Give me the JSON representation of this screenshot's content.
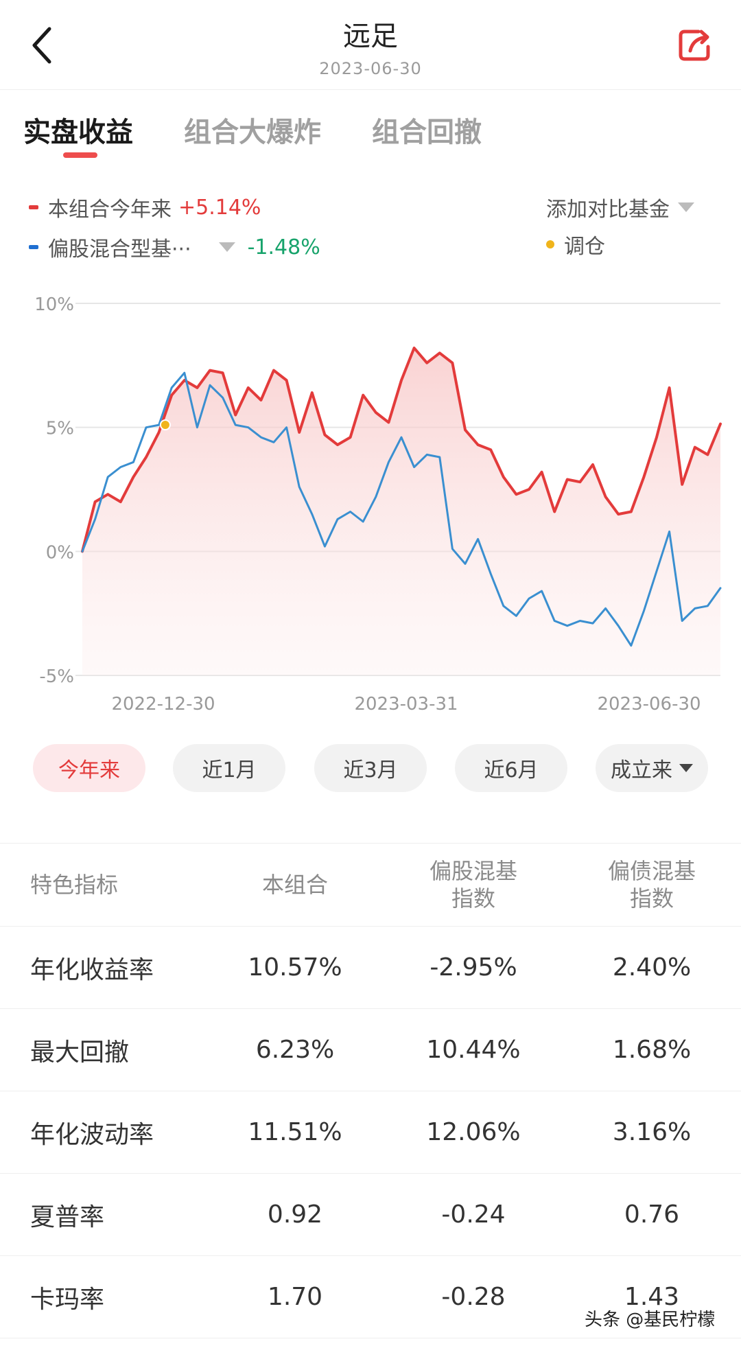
{
  "header": {
    "title": "远足",
    "subtitle": "2023-06-30"
  },
  "tabs": [
    {
      "label": "实盘收益",
      "active": true
    },
    {
      "label": "组合大爆炸",
      "active": false
    },
    {
      "label": "组合回撤",
      "active": false
    }
  ],
  "legend": {
    "series1_label": "本组合今年来",
    "series1_value": "+5.14%",
    "series2_label": "偏股混合型基···",
    "series2_value": "-1.48%",
    "compare_label": "添加对比基金",
    "rebalance_label": "调仓"
  },
  "colors": {
    "accent_red": "#e33b3b",
    "series_blue": "#3a8fd0",
    "positive_green": "#17a36b",
    "rebalance_dot": "#f0b41b"
  },
  "chart_data": {
    "type": "line",
    "y_ticks": [
      "10%",
      "5%",
      "0%",
      "-5%"
    ],
    "ylim": [
      -5,
      10
    ],
    "x_tick_labels": [
      "2022-12-30",
      "2023-03-31",
      "2023-06-30"
    ],
    "grid": true,
    "rebalance_points": [
      {
        "x": 0.13,
        "y": 5.1
      }
    ],
    "series": [
      {
        "name": "本组合今年来",
        "color": "#e33b3b",
        "x": [
          0,
          0.02,
          0.04,
          0.06,
          0.08,
          0.1,
          0.12,
          0.14,
          0.16,
          0.18,
          0.2,
          0.22,
          0.24,
          0.26,
          0.28,
          0.3,
          0.32,
          0.34,
          0.36,
          0.38,
          0.4,
          0.42,
          0.44,
          0.46,
          0.48,
          0.5,
          0.52,
          0.54,
          0.56,
          0.58,
          0.6,
          0.62,
          0.64,
          0.66,
          0.68,
          0.7,
          0.72,
          0.74,
          0.76,
          0.78,
          0.8,
          0.82,
          0.84,
          0.86,
          0.88,
          0.9,
          0.92,
          0.94,
          0.96,
          0.98,
          1.0
        ],
        "values": [
          0,
          2.0,
          2.3,
          2.0,
          3.0,
          3.8,
          4.8,
          6.3,
          6.9,
          6.6,
          7.3,
          7.2,
          5.5,
          6.6,
          6.1,
          7.3,
          6.9,
          4.8,
          6.4,
          4.7,
          4.3,
          4.6,
          6.3,
          5.6,
          5.2,
          6.9,
          8.2,
          7.6,
          8.0,
          7.6,
          4.9,
          4.3,
          4.1,
          3.0,
          2.3,
          2.5,
          3.2,
          1.6,
          2.9,
          2.8,
          3.5,
          2.2,
          1.5,
          1.6,
          3.0,
          4.6,
          6.6,
          2.7,
          4.2,
          3.9,
          5.14
        ]
      },
      {
        "name": "偏股混合型基···",
        "color": "#3a8fd0",
        "x": [
          0,
          0.02,
          0.04,
          0.06,
          0.08,
          0.1,
          0.12,
          0.14,
          0.16,
          0.18,
          0.2,
          0.22,
          0.24,
          0.26,
          0.28,
          0.3,
          0.32,
          0.34,
          0.36,
          0.38,
          0.4,
          0.42,
          0.44,
          0.46,
          0.48,
          0.5,
          0.52,
          0.54,
          0.56,
          0.58,
          0.6,
          0.62,
          0.64,
          0.66,
          0.68,
          0.7,
          0.72,
          0.74,
          0.76,
          0.78,
          0.8,
          0.82,
          0.84,
          0.86,
          0.88,
          0.9,
          0.92,
          0.94,
          0.96,
          0.98,
          1.0
        ],
        "values": [
          0,
          1.3,
          3.0,
          3.4,
          3.6,
          5.0,
          5.1,
          6.6,
          7.2,
          5.0,
          6.7,
          6.2,
          5.1,
          5.0,
          4.6,
          4.4,
          5.0,
          2.6,
          1.5,
          0.2,
          1.3,
          1.6,
          1.2,
          2.2,
          3.6,
          4.6,
          3.4,
          3.9,
          3.8,
          0.1,
          -0.5,
          0.5,
          -0.9,
          -2.2,
          -2.6,
          -1.9,
          -1.6,
          -2.8,
          -3.0,
          -2.8,
          -2.9,
          -2.3,
          -3.0,
          -3.8,
          -2.4,
          -0.8,
          0.8,
          -2.8,
          -2.3,
          -2.2,
          -1.48
        ]
      }
    ]
  },
  "ranges": [
    {
      "label": "今年来",
      "active": true
    },
    {
      "label": "近1月",
      "active": false
    },
    {
      "label": "近3月",
      "active": false
    },
    {
      "label": "近6月",
      "active": false
    },
    {
      "label": "成立来",
      "active": false
    }
  ],
  "table": {
    "headers": [
      "特色指标",
      "本组合",
      "偏股混基\n指数",
      "偏债混基\n指数"
    ],
    "rows": [
      [
        "年化收益率",
        "10.57%",
        "-2.95%",
        "2.40%"
      ],
      [
        "最大回撤",
        "6.23%",
        "10.44%",
        "1.68%"
      ],
      [
        "年化波动率",
        "11.51%",
        "12.06%",
        "3.16%"
      ],
      [
        "夏普率",
        "0.92",
        "-0.24",
        "0.76"
      ],
      [
        "卡玛率",
        "1.70",
        "-0.28",
        "1.43"
      ]
    ]
  },
  "watermark": "头条 @基民柠檬"
}
